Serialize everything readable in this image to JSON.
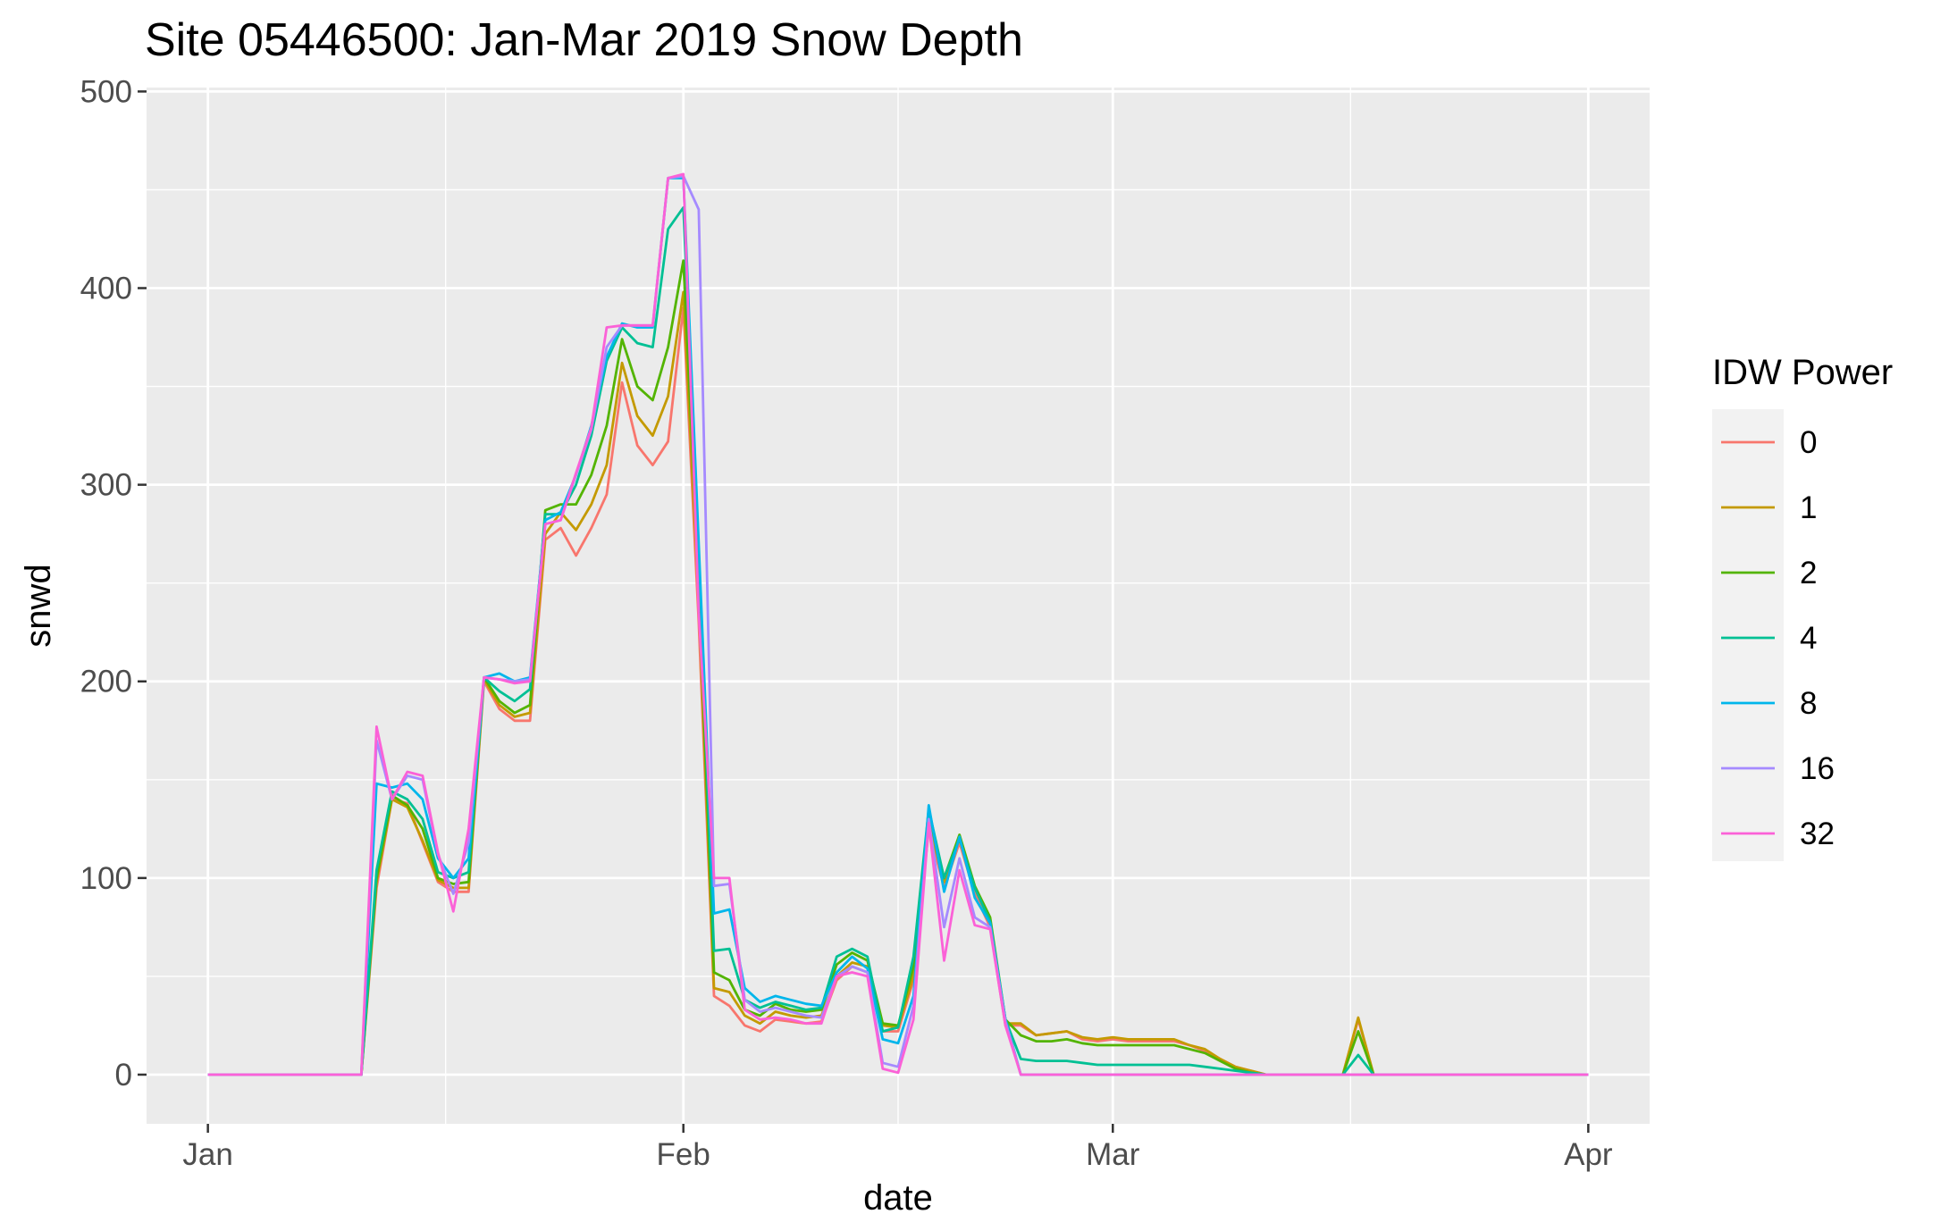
{
  "chart_data": {
    "type": "line",
    "title": "Site 05446500: Jan-Mar 2019 Snow Depth",
    "xlabel": "date",
    "ylabel": "snwd",
    "x_ticks": [
      "Jan",
      "Feb",
      "Mar",
      "Apr"
    ],
    "y_ticks": [
      "0",
      "100",
      "200",
      "300",
      "400",
      "500"
    ],
    "ylim": [
      -25,
      502
    ],
    "xlim": [
      "2018-12-28",
      "2019-04-05"
    ],
    "grid": true,
    "legend": {
      "title": "IDW Power",
      "position": "right"
    },
    "panel_background": "#ebebeb",
    "x": [
      "2019-01-01",
      "2019-01-11",
      "2019-01-12",
      "2019-01-13",
      "2019-01-14",
      "2019-01-15",
      "2019-01-16",
      "2019-01-17",
      "2019-01-18",
      "2019-01-19",
      "2019-01-20",
      "2019-01-21",
      "2019-01-22",
      "2019-01-23",
      "2019-01-24",
      "2019-01-25",
      "2019-01-26",
      "2019-01-27",
      "2019-01-28",
      "2019-01-29",
      "2019-01-30",
      "2019-01-31",
      "2019-02-01",
      "2019-02-02",
      "2019-02-03",
      "2019-02-04",
      "2019-02-05",
      "2019-02-06",
      "2019-02-07",
      "2019-02-08",
      "2019-02-09",
      "2019-02-10",
      "2019-02-11",
      "2019-02-12",
      "2019-02-13",
      "2019-02-14",
      "2019-02-15",
      "2019-02-16",
      "2019-02-17",
      "2019-02-18",
      "2019-02-19",
      "2019-02-20",
      "2019-02-21",
      "2019-02-22",
      "2019-02-23",
      "2019-02-24",
      "2019-02-25",
      "2019-02-26",
      "2019-02-27",
      "2019-02-28",
      "2019-03-01",
      "2019-03-02",
      "2019-03-03",
      "2019-03-04",
      "2019-03-05",
      "2019-03-06",
      "2019-03-07",
      "2019-03-08",
      "2019-03-09",
      "2019-03-10",
      "2019-03-11",
      "2019-03-12",
      "2019-03-13",
      "2019-03-14",
      "2019-03-15",
      "2019-03-16",
      "2019-03-17",
      "2019-03-18",
      "2019-03-19",
      "2019-04-01"
    ],
    "series": [
      {
        "name": "0",
        "color": "#F8766D",
        "values": [
          0,
          0,
          95,
          140,
          138,
          118,
          98,
          93,
          93,
          200,
          186,
          180,
          180,
          272,
          278,
          264,
          278,
          295,
          352,
          320,
          310,
          322,
          390,
          230,
          40,
          35,
          25,
          22,
          28,
          27,
          26,
          27,
          48,
          55,
          52,
          22,
          22,
          48,
          125,
          95,
          118,
          92,
          75,
          25,
          25,
          20,
          21,
          22,
          18,
          17,
          18,
          17,
          17,
          17,
          17,
          15,
          12,
          8,
          4,
          2,
          0,
          0,
          0,
          0,
          0,
          0,
          28,
          0,
          0,
          0
        ]
      },
      {
        "name": "1",
        "color": "#C49A00",
        "values": [
          0,
          0,
          98,
          140,
          136,
          119,
          99,
          95,
          95,
          201,
          188,
          182,
          184,
          275,
          286,
          277,
          290,
          310,
          362,
          335,
          325,
          345,
          398,
          240,
          44,
          42,
          30,
          26,
          32,
          30,
          29,
          30,
          50,
          57,
          55,
          25,
          24,
          50,
          128,
          98,
          120,
          95,
          78,
          26,
          26,
          20,
          21,
          22,
          19,
          18,
          19,
          18,
          18,
          18,
          18,
          15,
          13,
          8,
          4,
          2,
          0,
          0,
          0,
          0,
          0,
          0,
          29,
          0,
          0,
          0
        ]
      },
      {
        "name": "2",
        "color": "#53B400",
        "values": [
          0,
          0,
          100,
          142,
          137,
          125,
          100,
          97,
          98,
          202,
          190,
          184,
          188,
          287,
          290,
          290,
          305,
          330,
          374,
          350,
          343,
          370,
          414,
          250,
          52,
          48,
          33,
          30,
          36,
          33,
          32,
          33,
          56,
          62,
          58,
          26,
          25,
          55,
          132,
          100,
          122,
          96,
          80,
          28,
          20,
          17,
          17,
          18,
          16,
          15,
          15,
          15,
          15,
          15,
          15,
          13,
          11,
          7,
          3,
          1,
          0,
          0,
          0,
          0,
          0,
          0,
          22,
          0,
          0,
          0
        ]
      },
      {
        "name": "4",
        "color": "#00C094",
        "values": [
          0,
          0,
          104,
          144,
          140,
          130,
          103,
          100,
          103,
          202,
          195,
          190,
          196,
          285,
          285,
          300,
          325,
          363,
          380,
          372,
          370,
          430,
          441,
          260,
          63,
          64,
          38,
          34,
          37,
          35,
          33,
          34,
          60,
          64,
          60,
          22,
          24,
          60,
          135,
          100,
          120,
          95,
          78,
          28,
          8,
          7,
          7,
          7,
          6,
          5,
          5,
          5,
          5,
          5,
          5,
          5,
          4,
          3,
          2,
          1,
          0,
          0,
          0,
          0,
          0,
          0,
          10,
          0,
          0,
          0
        ]
      },
      {
        "name": "8",
        "color": "#00B6EB",
        "values": [
          0,
          0,
          148,
          146,
          148,
          140,
          110,
          100,
          110,
          202,
          204,
          200,
          202,
          282,
          286,
          305,
          330,
          365,
          382,
          380,
          380,
          456,
          456,
          270,
          82,
          84,
          44,
          37,
          40,
          38,
          36,
          35,
          52,
          60,
          54,
          18,
          16,
          40,
          137,
          93,
          121,
          90,
          77,
          28,
          0,
          0,
          0,
          0,
          0,
          0,
          0,
          0,
          0,
          0,
          0,
          0,
          0,
          0,
          0,
          0,
          0,
          0,
          0,
          0,
          0,
          0,
          0,
          0,
          0,
          0
        ]
      },
      {
        "name": "16",
        "color": "#A58AFF",
        "values": [
          0,
          0,
          170,
          140,
          152,
          150,
          112,
          92,
          118,
          202,
          201,
          200,
          201,
          280,
          282,
          305,
          328,
          370,
          381,
          381,
          381,
          456,
          457,
          440,
          96,
          97,
          38,
          32,
          34,
          32,
          30,
          29,
          50,
          55,
          52,
          6,
          4,
          35,
          130,
          75,
          110,
          80,
          75,
          27,
          0,
          0,
          0,
          0,
          0,
          0,
          0,
          0,
          0,
          0,
          0,
          0,
          0,
          0,
          0,
          0,
          0,
          0,
          0,
          0,
          0,
          0,
          0,
          0,
          0,
          0
        ]
      },
      {
        "name": "32",
        "color": "#FB61D7",
        "values": [
          0,
          0,
          177,
          140,
          154,
          152,
          113,
          83,
          125,
          202,
          201,
          199,
          200,
          280,
          282,
          306,
          329,
          380,
          381,
          381,
          381,
          456,
          458,
          235,
          100,
          100,
          33,
          28,
          29,
          28,
          26,
          26,
          50,
          52,
          50,
          3,
          1,
          28,
          128,
          58,
          104,
          76,
          74,
          25,
          0,
          0,
          0,
          0,
          0,
          0,
          0,
          0,
          0,
          0,
          0,
          0,
          0,
          0,
          0,
          0,
          0,
          0,
          0,
          0,
          0,
          0,
          0,
          0,
          0,
          0
        ]
      }
    ]
  }
}
